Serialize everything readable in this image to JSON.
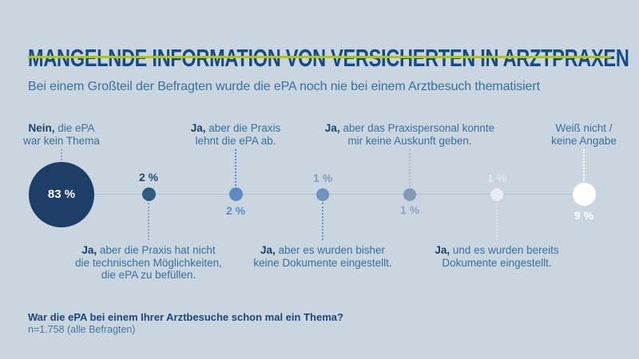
{
  "background": "#c9d6e0",
  "accent_color": "#b3c503",
  "header": {
    "title": "MANGELNDE INFORMATION VON VERSICHERTEN IN ARZTPRAXEN",
    "subtitle": "Bei einem Großteil der Befragten wurde die ePA noch nie bei einem Arztbesuch thematisiert"
  },
  "footer": {
    "question": "War die ePA bei einem Ihrer Arztbesuche schon mal ein Thema?",
    "sample": "n=1.758 (alle Befragten)"
  },
  "chart_data": {
    "type": "scatter",
    "layout": "proportional circles on a horizontal line, category labels alternating above/below, connected by dotted lines",
    "title": "MANGELNDE INFORMATION VON VERSICHERTEN IN ARZTPRAXEN",
    "subtitle": "Bei einem Großteil der Befragten wurde die ePA noch nie bei einem Arztbesuch thematisiert",
    "question": "War die ePA bei einem Ihrer Arztbesuche schon mal ein Thema?",
    "sample": "n=1.758 (alle Befragten)",
    "unit": "%",
    "axis_line_color": "#b2c1ce",
    "categories": [
      "Nein, die ePA war kein Thema",
      "Ja, aber die Praxis hat nicht die technischen Möglichkeiten, die ePA zu befüllen.",
      "Ja, aber die Praxis lehnt die ePA ab.",
      "Ja, aber es wurden bisher keine Dokumente eingestellt.",
      "Ja, aber das Praxispersonal konnte mir keine Auskunft geben.",
      "Ja, und es wurden bereits Dokumente eingestellt.",
      "Weiß nicht / keine Angabe"
    ],
    "values": [
      83,
      2,
      2,
      1,
      1,
      1,
      9
    ],
    "points": [
      {
        "value": 83,
        "value_label": "83 %",
        "label_bold": "Nein,",
        "label_lines": [
          "die ePA",
          "war kein Thema"
        ],
        "label_side": "above",
        "value_side": "inside",
        "dot_color": "#1d3e66",
        "value_color": "#ffffff",
        "connector_color": "#8ba1b7"
      },
      {
        "value": 2,
        "value_label": "2 %",
        "label_bold": "Ja,",
        "label_lines": [
          "aber die Praxis hat nicht",
          "die technischen Möglichkeiten,",
          "die ePA zu befüllen."
        ],
        "label_side": "below",
        "value_side": "above",
        "dot_color": "#2e5a7d",
        "value_color": "#234a6e",
        "connector_color": "#8ba1b7"
      },
      {
        "value": 2,
        "value_label": "2 %",
        "label_bold": "Ja,",
        "label_lines": [
          "aber die Praxis",
          "lehnt die ePA ab."
        ],
        "label_side": "above",
        "value_side": "below",
        "dot_color": "#5d8ac2",
        "value_color": "#5d8ac2",
        "connector_color": "#5d8ac2"
      },
      {
        "value": 1,
        "value_label": "1 %",
        "label_bold": "Ja,",
        "label_lines": [
          "aber es wurden bisher",
          "keine Dokumente eingestellt."
        ],
        "label_side": "below",
        "value_side": "above",
        "dot_color": "#6e93bf",
        "value_color": "#7d9cc6",
        "connector_color": "#6e93bf"
      },
      {
        "value": 1,
        "value_label": "1 %",
        "label_bold": "Ja,",
        "label_lines": [
          "aber das Praxispersonal konnte",
          "mir keine Auskunft geben."
        ],
        "label_side": "above",
        "value_side": "below",
        "dot_color": "#8399b4",
        "value_color": "#8ea4bb",
        "connector_color": "#a9b8c7"
      },
      {
        "value": 1,
        "value_label": "1 %",
        "label_bold": "Ja,",
        "label_lines": [
          "und es wurden bereits",
          "Dokumente eingestellt."
        ],
        "label_side": "below",
        "value_side": "above",
        "dot_color": "#e7edf2",
        "value_color": "#e0e8ef",
        "connector_color": "#dfe7ee"
      },
      {
        "value": 9,
        "value_label": "9 %",
        "label_bold": "",
        "label_lines": [
          "Weiß nicht /",
          "keine Angabe"
        ],
        "label_side": "above",
        "value_side": "below",
        "dot_color": "#ffffff",
        "value_color": "#ffffff",
        "connector_color": "#ffffff"
      }
    ]
  }
}
